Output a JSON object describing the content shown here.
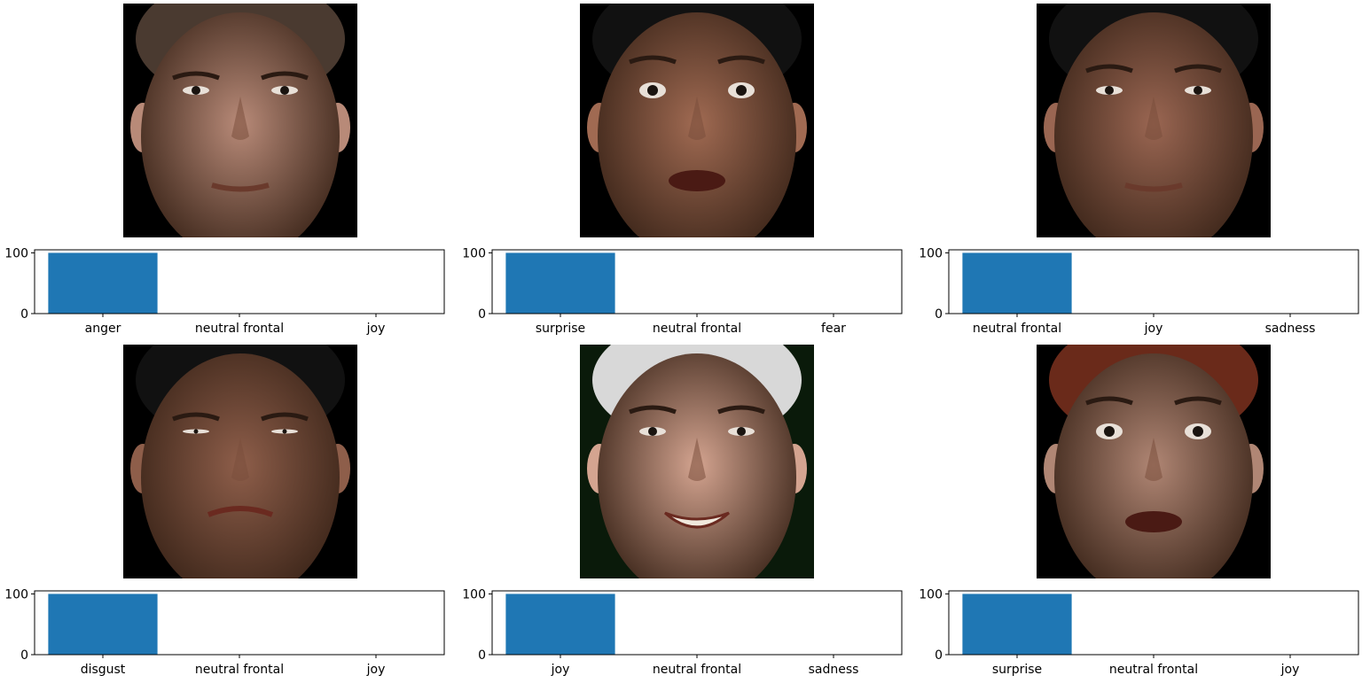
{
  "chart_data": [
    {
      "type": "bar",
      "categories": [
        "anger",
        "neutral frontal",
        "joy"
      ],
      "values": [
        100,
        0,
        0
      ],
      "ylim": [
        0,
        105
      ],
      "yticks": [
        0,
        100
      ],
      "bar_color": "#1f77b4",
      "face": {
        "skin": "#b88a78",
        "hair": "#4a3a30",
        "bg": "#000000",
        "expression": "anger"
      }
    },
    {
      "type": "bar",
      "categories": [
        "surprise",
        "neutral frontal",
        "fear"
      ],
      "values": [
        100,
        0,
        0
      ],
      "ylim": [
        0,
        105
      ],
      "yticks": [
        0,
        100
      ],
      "bar_color": "#1f77b4",
      "face": {
        "skin": "#a06a52",
        "hair": "#111111",
        "bg": "#000000",
        "expression": "surprise"
      }
    },
    {
      "type": "bar",
      "categories": [
        "neutral frontal",
        "joy",
        "sadness"
      ],
      "values": [
        100,
        0,
        0
      ],
      "ylim": [
        0,
        105
      ],
      "yticks": [
        0,
        100
      ],
      "bar_color": "#1f77b4",
      "face": {
        "skin": "#9a6652",
        "hair": "#111111",
        "bg": "#000000",
        "expression": "neutral"
      }
    },
    {
      "type": "bar",
      "categories": [
        "disgust",
        "neutral frontal",
        "joy"
      ],
      "values": [
        100,
        0,
        0
      ],
      "ylim": [
        0,
        105
      ],
      "yticks": [
        0,
        100
      ],
      "bar_color": "#1f77b4",
      "face": {
        "skin": "#8e5e4a",
        "hair": "#111111",
        "bg": "#000000",
        "expression": "disgust"
      }
    },
    {
      "type": "bar",
      "categories": [
        "joy",
        "neutral frontal",
        "sadness"
      ],
      "values": [
        100,
        0,
        0
      ],
      "ylim": [
        0,
        105
      ],
      "yticks": [
        0,
        100
      ],
      "bar_color": "#1f77b4",
      "face": {
        "skin": "#d4a490",
        "hair": "#d8d8d8",
        "bg": "#0a1a0a",
        "expression": "joy"
      }
    },
    {
      "type": "bar",
      "categories": [
        "surprise",
        "neutral frontal",
        "joy"
      ],
      "values": [
        100,
        0,
        0
      ],
      "ylim": [
        0,
        105
      ],
      "yticks": [
        0,
        100
      ],
      "bar_color": "#1f77b4",
      "face": {
        "skin": "#b08674",
        "hair": "#6a2a1a",
        "bg": "#000000",
        "expression": "surprise"
      }
    }
  ]
}
